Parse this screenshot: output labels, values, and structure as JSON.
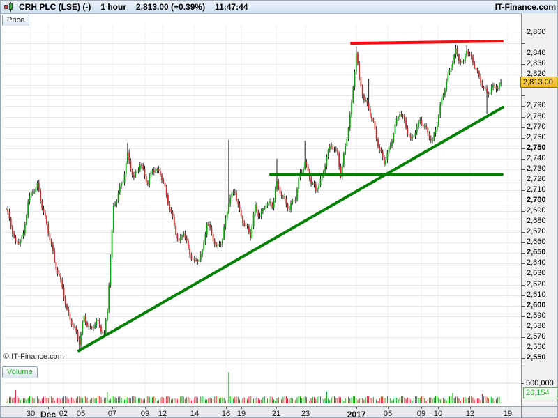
{
  "title_bar": {
    "symbol": "CRH PLC (LSE) (-)",
    "timeframe": "1 hour",
    "last_quote": "2,813.00 (+0.39%)",
    "clock": "11:47:44",
    "brand": "IT-Finance.com"
  },
  "tabs": {
    "price": "Price",
    "volume": "Volume"
  },
  "copyright": "© IT-Finance.com",
  "price_badge_label": "2,813.00",
  "colors": {
    "up": "#0a9e0a",
    "down": "#cc2a2a",
    "wick": "#222222",
    "trend_green": "#008000",
    "trend_red": "#f01010",
    "grid": "#e9e9e9",
    "vgrid": "#efefef"
  },
  "chart_data": {
    "type": "candlestick",
    "title": "CRH PLC (LSE) - 1 hour",
    "last_close": 2813.0,
    "change_pct": "+0.39%",
    "ylim": [
      2550,
      2860
    ],
    "y_step": 10,
    "y_bold_every": 50,
    "y_skip_labels": [
      2850,
      2800
    ],
    "candle_count": 319,
    "price_path": [
      [
        0,
        2692
      ],
      [
        6,
        2658
      ],
      [
        11,
        2668
      ],
      [
        14,
        2700
      ],
      [
        20,
        2714
      ],
      [
        24,
        2690
      ],
      [
        28,
        2665
      ],
      [
        31,
        2640
      ],
      [
        36,
        2618
      ],
      [
        39,
        2596
      ],
      [
        43,
        2580
      ],
      [
        47,
        2564
      ],
      [
        50,
        2590
      ],
      [
        54,
        2578
      ],
      [
        58,
        2584
      ],
      [
        63,
        2572
      ],
      [
        65,
        2598
      ],
      [
        67,
        2648
      ],
      [
        69,
        2694
      ],
      [
        75,
        2718
      ],
      [
        78,
        2744
      ],
      [
        82,
        2722
      ],
      [
        86,
        2734
      ],
      [
        91,
        2716
      ],
      [
        94,
        2732
      ],
      [
        99,
        2726
      ],
      [
        103,
        2704
      ],
      [
        108,
        2678
      ],
      [
        111,
        2660
      ],
      [
        114,
        2670
      ],
      [
        117,
        2652
      ],
      [
        121,
        2642
      ],
      [
        126,
        2650
      ],
      [
        129,
        2678
      ],
      [
        132,
        2668
      ],
      [
        135,
        2656
      ],
      [
        139,
        2664
      ],
      [
        143,
        2698
      ],
      [
        147,
        2710
      ],
      [
        150,
        2690
      ],
      [
        153,
        2678
      ],
      [
        157,
        2666
      ],
      [
        160,
        2694
      ],
      [
        163,
        2686
      ],
      [
        167,
        2698
      ],
      [
        171,
        2694
      ],
      [
        174,
        2716
      ],
      [
        178,
        2704
      ],
      [
        182,
        2692
      ],
      [
        186,
        2702
      ],
      [
        189,
        2726
      ],
      [
        192,
        2738
      ],
      [
        196,
        2718
      ],
      [
        199,
        2708
      ],
      [
        203,
        2722
      ],
      [
        206,
        2744
      ],
      [
        209,
        2754
      ],
      [
        213,
        2742
      ],
      [
        215,
        2724
      ],
      [
        218,
        2752
      ],
      [
        222,
        2792
      ],
      [
        225,
        2841
      ],
      [
        227,
        2814
      ],
      [
        230,
        2796
      ],
      [
        233,
        2790
      ],
      [
        236,
        2774
      ],
      [
        240,
        2746
      ],
      [
        243,
        2736
      ],
      [
        247,
        2754
      ],
      [
        250,
        2772
      ],
      [
        253,
        2784
      ],
      [
        257,
        2770
      ],
      [
        260,
        2758
      ],
      [
        263,
        2768
      ],
      [
        266,
        2776
      ],
      [
        270,
        2766
      ],
      [
        274,
        2757
      ],
      [
        277,
        2776
      ],
      [
        280,
        2796
      ],
      [
        283,
        2812
      ],
      [
        287,
        2834
      ],
      [
        289,
        2844
      ],
      [
        291,
        2836
      ],
      [
        294,
        2830
      ],
      [
        296,
        2844
      ],
      [
        298,
        2836
      ],
      [
        301,
        2830
      ],
      [
        304,
        2818
      ],
      [
        307,
        2808
      ],
      [
        309,
        2800
      ],
      [
        312,
        2806
      ],
      [
        316,
        2810
      ],
      [
        318,
        2813
      ]
    ],
    "wick_specials": {
      "47": {
        "low": 2558
      },
      "78": {
        "high": 2755
      },
      "143": {
        "high": 2758
      },
      "174": {
        "high": 2740
      },
      "192": {
        "high": 2757
      },
      "225": {
        "high": 2847
      },
      "233": {
        "high": 2816
      },
      "289": {
        "high": 2849
      },
      "296": {
        "high": 2848
      },
      "309": {
        "low": 2783
      }
    },
    "x_ticks": [
      {
        "x": 43,
        "label": "30",
        "bold": false
      },
      {
        "x": 68,
        "label": "Dec",
        "bold": true
      },
      {
        "x": 90,
        "label": "02",
        "bold": false
      },
      {
        "x": 115,
        "label": "05",
        "bold": false
      },
      {
        "x": 160,
        "label": "07",
        "bold": false
      },
      {
        "x": 207,
        "label": "09",
        "bold": false
      },
      {
        "x": 232,
        "label": "12",
        "bold": false
      },
      {
        "x": 278,
        "label": "14",
        "bold": false
      },
      {
        "x": 323,
        "label": "16",
        "bold": false
      },
      {
        "x": 345,
        "label": "19",
        "bold": false
      },
      {
        "x": 395,
        "label": "21",
        "bold": false
      },
      {
        "x": 437,
        "label": "23",
        "bold": false
      },
      {
        "x": 510,
        "label": "2017",
        "bold": true
      },
      {
        "x": 555,
        "label": "05",
        "bold": false
      },
      {
        "x": 603,
        "label": "09",
        "bold": false
      },
      {
        "x": 627,
        "label": "10",
        "bold": false
      },
      {
        "x": 673,
        "label": "12",
        "bold": false
      },
      {
        "x": 727,
        "label": "19",
        "bold": false
      }
    ],
    "trendlines": [
      {
        "name": "ascending-support",
        "x1": 112,
        "p1": 2557,
        "x2": 720,
        "p2": 2789,
        "color": "#008000",
        "width": 4
      },
      {
        "name": "horizontal-support",
        "x1": 387,
        "p1": 2725,
        "x2": 719,
        "p2": 2725,
        "color": "#008000",
        "width": 4
      },
      {
        "name": "horizontal-resistance",
        "x1": 503,
        "p1": 2850,
        "x2": 719,
        "p2": 2852,
        "color": "#f01010",
        "width": 4
      }
    ],
    "volume": {
      "axis_value": 500000,
      "axis_label": "500,000",
      "last_value": 26154,
      "last_label": "26,154",
      "specials": {
        "6": 330000,
        "20": 180000,
        "65": 280000,
        "143": 770000,
        "206": 300000,
        "287": 260000,
        "306": 240000,
        "318": 26154
      }
    }
  }
}
